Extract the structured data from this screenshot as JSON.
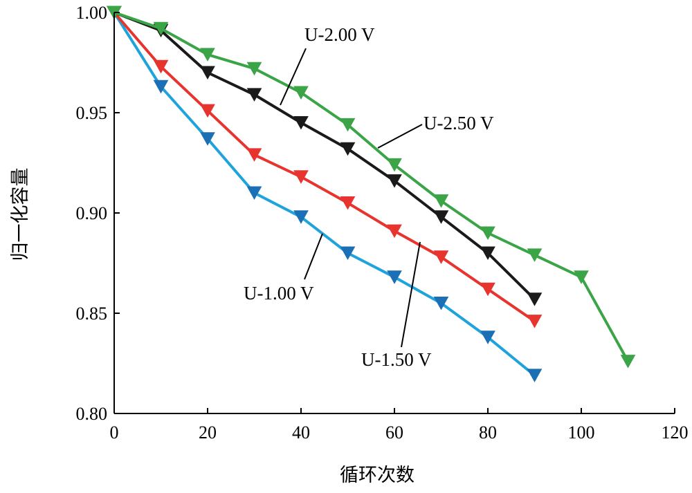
{
  "chart_data": {
    "type": "line",
    "title": "",
    "xlabel": "循环次数",
    "ylabel": "归一化容量",
    "xlim": [
      0,
      120
    ],
    "ylim": [
      0.8,
      1.0
    ],
    "xticks": [
      0,
      20,
      40,
      60,
      80,
      100,
      120
    ],
    "xtick_labels": [
      "0",
      "20",
      "40",
      "60",
      "80",
      "100",
      "120"
    ],
    "yticks": [
      0.8,
      0.85,
      0.9,
      0.95,
      1.0
    ],
    "ytick_labels": [
      "0.80",
      "0.85",
      "0.90",
      "0.95",
      "1.00"
    ],
    "grid": false,
    "legend": "none",
    "marker": "downward-triangle",
    "series": [
      {
        "name": "U-1.00 V",
        "color": "#1fa3dc",
        "marker_color": "#1a6fb5",
        "x": [
          0,
          10,
          20,
          30,
          40,
          50,
          60,
          70,
          80,
          90
        ],
        "y": [
          1.0,
          0.963,
          0.937,
          0.91,
          0.898,
          0.88,
          0.868,
          0.855,
          0.838,
          0.819
        ]
      },
      {
        "name": "U-1.50 V",
        "color": "#e8342e",
        "marker_color": "#e8342e",
        "x": [
          0,
          10,
          20,
          30,
          40,
          50,
          60,
          70,
          80,
          90
        ],
        "y": [
          1.0,
          0.973,
          0.951,
          0.929,
          0.918,
          0.905,
          0.891,
          0.878,
          0.862,
          0.846
        ]
      },
      {
        "name": "U-2.00 V",
        "color": "#1a1a1a",
        "marker_color": "#1a1a1a",
        "x": [
          0,
          10,
          20,
          30,
          40,
          50,
          60,
          70,
          80,
          90
        ],
        "y": [
          1.0,
          0.991,
          0.97,
          0.959,
          0.945,
          0.932,
          0.916,
          0.898,
          0.88,
          0.857
        ]
      },
      {
        "name": "U-2.50 V",
        "color": "#3aa447",
        "marker_color": "#3aa447",
        "x": [
          0,
          10,
          20,
          30,
          40,
          50,
          60,
          70,
          80,
          90,
          100,
          110
        ],
        "y": [
          1.0,
          0.992,
          0.979,
          0.972,
          0.96,
          0.944,
          0.924,
          0.906,
          0.89,
          0.879,
          0.868,
          0.826
        ]
      }
    ],
    "annotations": [
      {
        "text": "U-2.00 V",
        "series": "U-2.00 V"
      },
      {
        "text": "U-2.50 V",
        "series": "U-2.50 V"
      },
      {
        "text": "U-1.00 V",
        "series": "U-1.00 V"
      },
      {
        "text": "U-1.50 V",
        "series": "U-1.50 V"
      }
    ]
  }
}
